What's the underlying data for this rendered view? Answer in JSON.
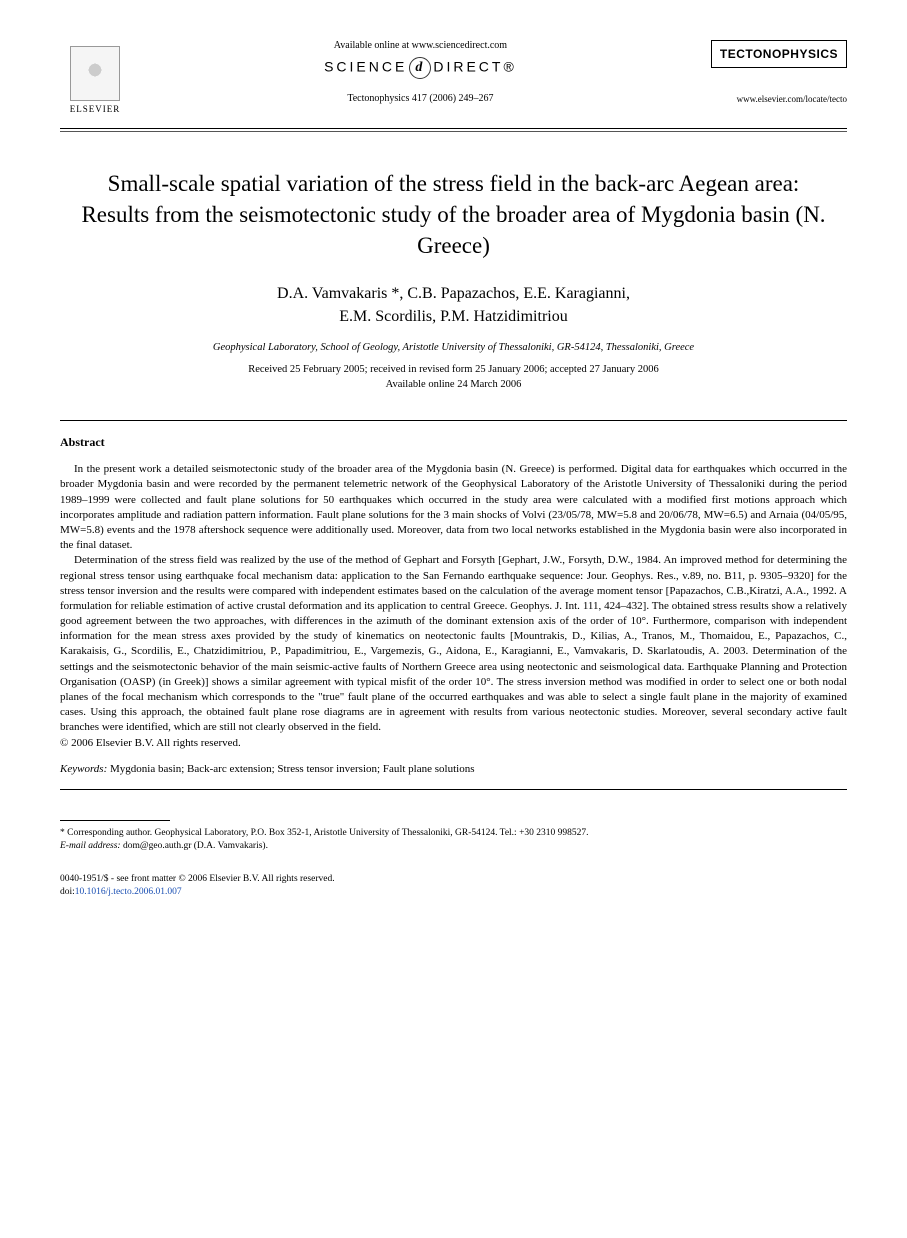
{
  "header": {
    "available_online": "Available online at www.sciencedirect.com",
    "sciencedirect_prefix": "SCIENCE",
    "sciencedirect_suffix": "DIRECT®",
    "citation": "Tectonophysics 417 (2006) 249–267",
    "elsevier_label": "ELSEVIER",
    "journal_name": "TECTONOPHYSICS",
    "journal_url": "www.elsevier.com/locate/tecto"
  },
  "title": "Small-scale spatial variation of the stress field in the back-arc Aegean area: Results from the seismotectonic study of the broader area of Mygdonia basin (N. Greece)",
  "authors_line1": "D.A. Vamvakaris *, C.B. Papazachos, E.E. Karagianni,",
  "authors_line2": "E.M. Scordilis, P.M. Hatzidimitriou",
  "affiliation": "Geophysical Laboratory, School of Geology, Aristotle University of Thessaloniki, GR-54124, Thessaloniki, Greece",
  "dates_line1": "Received 25 February 2005; received in revised form 25 January 2006; accepted 27 January 2006",
  "dates_line2": "Available online 24 March 2006",
  "abstract_heading": "Abstract",
  "abstract_p1": "In the present work a detailed seismotectonic study of the broader area of the Mygdonia basin (N. Greece) is performed. Digital data for earthquakes which occurred in the broader Mygdonia basin and were recorded by the permanent telemetric network of the Geophysical Laboratory of the Aristotle University of Thessaloniki during the period 1989–1999 were collected and fault plane solutions for 50 earthquakes which occurred in the study area were calculated with a modified first motions approach which incorporates amplitude and radiation pattern information. Fault plane solutions for the 3 main shocks of Volvi (23/05/78, MW=5.8 and 20/06/78, MW=6.5) and Arnaia (04/05/95, MW=5.8) events and the 1978 aftershock sequence were additionally used. Moreover, data from two local networks established in the Mygdonia basin were also incorporated in the final dataset.",
  "abstract_p2": "Determination of the stress field was realized by the use of the method of Gephart and Forsyth [Gephart, J.W., Forsyth, D.W., 1984. An improved method for determining the regional stress tensor using earthquake focal mechanism data: application to the San Fernando earthquake sequence: Jour. Geophys. Res., v.89, no. B11, p. 9305–9320] for the stress tensor inversion and the results were compared with independent estimates based on the calculation of the average moment tensor [Papazachos, C.B.,Kiratzi, A.A., 1992. A formulation for reliable estimation of active crustal deformation and its application to central Greece. Geophys. J. Int. 111, 424–432]. The obtained stress results show a relatively good agreement between the two approaches, with differences in the azimuth of the dominant extension axis of the order of 10°. Furthermore, comparison with independent information for the mean stress axes provided by the study of kinematics on neotectonic faults [Mountrakis, D., Kilias, A., Tranos, M., Thomaidou, E., Papazachos, C., Karakaisis, G., Scordilis, E., Chatzidimitriou, P., Papadimitriou, E., Vargemezis, G., Aidona, E., Karagianni, E., Vamvakaris, D. Skarlatoudis, A. 2003. Determination of the settings and the seismotectonic behavior of the main seismic-active faults of Northern Greece area using neotectonic and seismological data. Earthquake Planning and Protection Organisation (OASP) (in Greek)] shows a similar agreement with typical misfit of the order 10°. The stress inversion method was modified in order to select one or both nodal planes of the focal mechanism which corresponds to the \"true\" fault plane of the occurred earthquakes and was able to select a single fault plane in the majority of examined cases. Using this approach, the obtained fault plane rose diagrams are in agreement with results from various neotectonic studies. Moreover, several secondary active fault branches were identified, which are still not clearly observed in the field.",
  "copyright": "© 2006 Elsevier B.V. All rights reserved.",
  "keywords_label": "Keywords:",
  "keywords_text": " Mygdonia basin; Back-arc extension; Stress tensor inversion; Fault plane solutions",
  "footnote_corr": "* Corresponding author. Geophysical Laboratory, P.O. Box 352-1, Aristotle University of Thessaloniki, GR-54124. Tel.: +30 2310 998527.",
  "footnote_email_label": "E-mail address:",
  "footnote_email": " dom@geo.auth.gr",
  "footnote_email_attr": " (D.A. Vamvakaris).",
  "footer_line1": "0040-1951/$ - see front matter © 2006 Elsevier B.V. All rights reserved.",
  "footer_doi_label": "doi:",
  "footer_doi": "10.1016/j.tecto.2006.01.007"
}
